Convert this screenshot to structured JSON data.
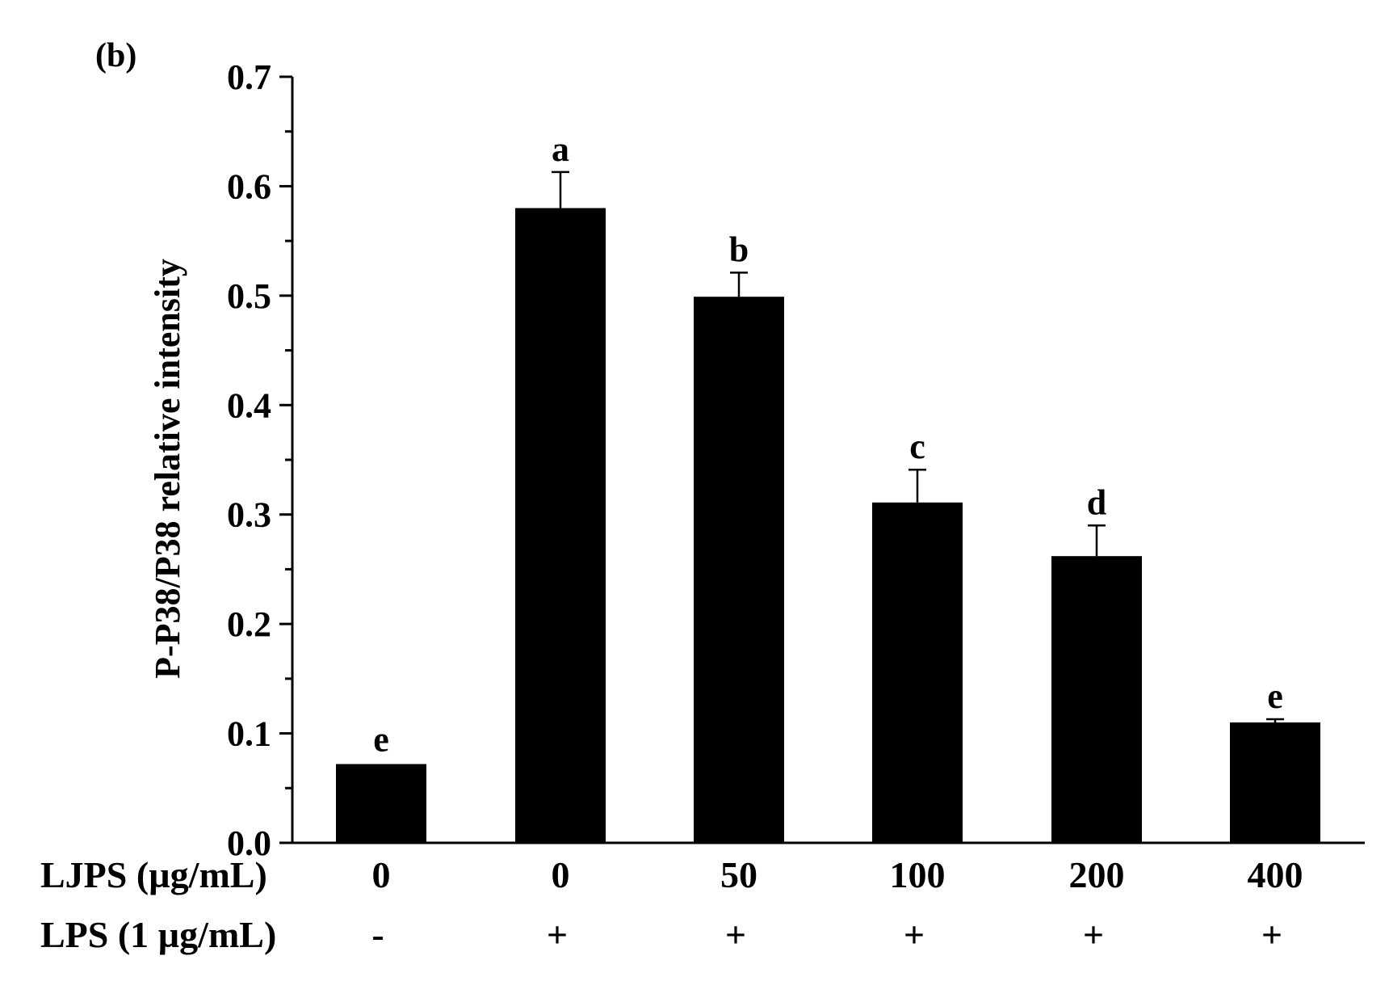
{
  "chart_data": {
    "type": "bar",
    "panel_label": "(b)",
    "ylabel": "P-P38/P38 relative intensity",
    "ylim": [
      0,
      0.7
    ],
    "yticks": [
      "0.0",
      "0.1",
      "0.2",
      "0.3",
      "0.4",
      "0.5",
      "0.6",
      "0.7"
    ],
    "categories": [
      "0",
      "0",
      "50",
      "100",
      "200",
      "400"
    ],
    "values": [
      0.072,
      0.58,
      0.499,
      0.311,
      0.262,
      0.11
    ],
    "errors": [
      0.0,
      0.033,
      0.022,
      0.03,
      0.028,
      0.003
    ],
    "significance": [
      "e",
      "a",
      "b",
      "c",
      "d",
      "e"
    ],
    "row1_label": "LJPS (µg/mL)",
    "row2_label": "LPS (1 µg/mL)",
    "row2_values": [
      "-",
      "+",
      "+",
      "+",
      "+",
      "+"
    ],
    "bar_color": "#000000"
  }
}
